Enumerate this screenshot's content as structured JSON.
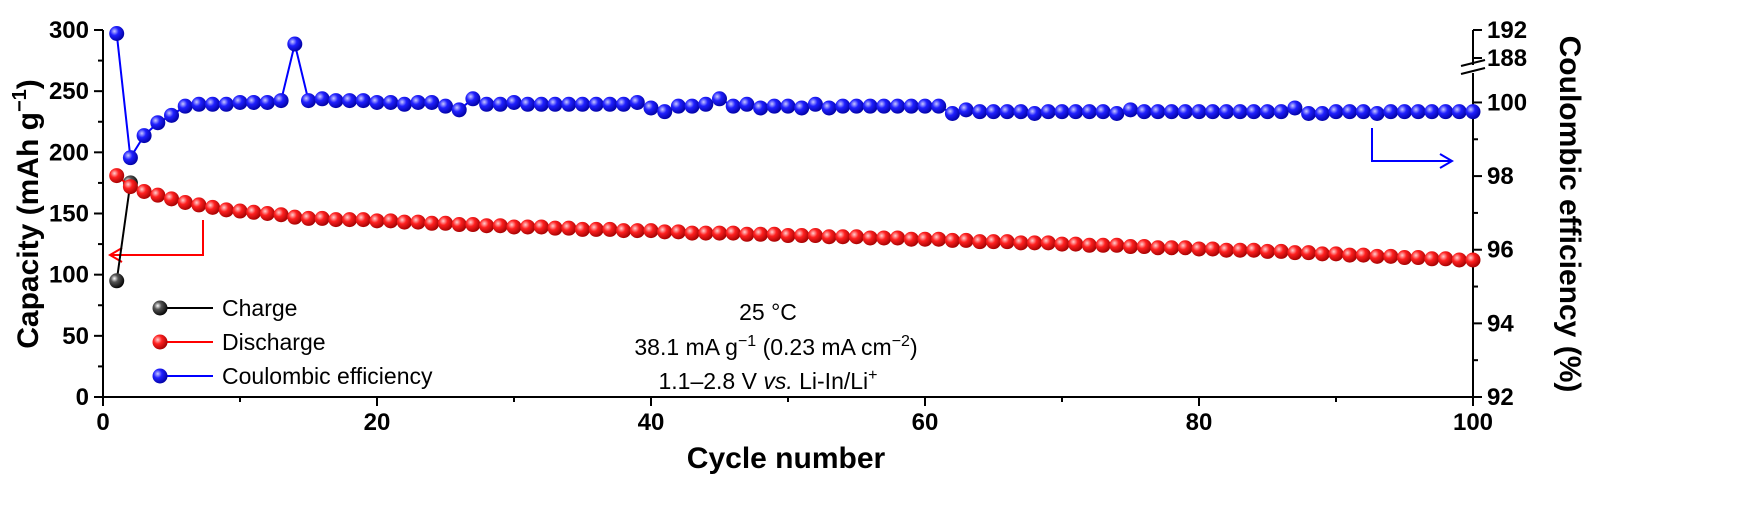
{
  "chart_data": {
    "type": "scatter",
    "xlabel": "Cycle number",
    "ylabel_left": "Capacity (mAh g",
    "ylabel_left_sup": "−1",
    "ylabel_left_close": ")",
    "ylabel_right": "Coulombic efficiency (%)",
    "x_axis": {
      "range": [
        0,
        100
      ],
      "ticks": [
        "0",
        "20",
        "40",
        "60",
        "80",
        "100"
      ]
    },
    "y_left": {
      "range": [
        0,
        300
      ],
      "ticks": [
        "0",
        "50",
        "100",
        "150",
        "200",
        "250",
        "300"
      ]
    },
    "y_right": {
      "range_lower": [
        92,
        100.8
      ],
      "ticks_lower": [
        "92",
        "94",
        "96",
        "98",
        "100"
      ],
      "range_upper": [
        187,
        192
      ],
      "ticks_upper": [
        "188",
        "192"
      ]
    },
    "grid": false,
    "legend": {
      "placement": "bottom-left",
      "entries": [
        "Charge",
        "Discharge",
        "Coulombic efficiency"
      ]
    },
    "annotations": {
      "temperature": "25 °C",
      "current_value": "38.1 mA g",
      "current_sup": "−1",
      "current_area_open": " (0.23 mA cm",
      "current_area_sup": "−2",
      "current_area_close": ")",
      "voltage_range": "1.1–2.8 V ",
      "voltage_vs": "vs.",
      "voltage_ref": " Li-In/Li",
      "voltage_ref_sup": "+"
    },
    "series": [
      {
        "name": "Charge",
        "color": "#000000",
        "axis": "left",
        "x": [
          1,
          2
        ],
        "y": [
          95,
          175
        ]
      },
      {
        "name": "Discharge",
        "color": "#ff0000",
        "axis": "left",
        "x": [
          1,
          2,
          3,
          4,
          5,
          6,
          7,
          8,
          9,
          10,
          11,
          12,
          13,
          14,
          15,
          16,
          17,
          18,
          19,
          20,
          21,
          22,
          23,
          24,
          25,
          26,
          27,
          28,
          29,
          30,
          31,
          32,
          33,
          34,
          35,
          36,
          37,
          38,
          39,
          40,
          41,
          42,
          43,
          44,
          45,
          46,
          47,
          48,
          49,
          50,
          51,
          52,
          53,
          54,
          55,
          56,
          57,
          58,
          59,
          60,
          61,
          62,
          63,
          64,
          65,
          66,
          67,
          68,
          69,
          70,
          71,
          72,
          73,
          74,
          75,
          76,
          77,
          78,
          79,
          80,
          81,
          82,
          83,
          84,
          85,
          86,
          87,
          88,
          89,
          90,
          91,
          92,
          93,
          94,
          95,
          96,
          97,
          98,
          99,
          100
        ],
        "y": [
          181,
          172,
          168,
          165,
          162,
          159,
          157,
          155,
          153,
          152,
          151,
          150,
          149,
          147,
          146,
          146,
          145,
          145,
          145,
          144,
          144,
          143,
          143,
          142,
          142,
          141,
          141,
          140,
          140,
          139,
          139,
          139,
          138,
          138,
          137,
          137,
          137,
          136,
          136,
          136,
          135,
          135,
          134,
          134,
          134,
          134,
          133,
          133,
          133,
          132,
          132,
          132,
          131,
          131,
          131,
          130,
          130,
          130,
          129,
          129,
          129,
          128,
          128,
          127,
          127,
          127,
          126,
          126,
          126,
          125,
          125,
          124,
          124,
          124,
          123,
          123,
          122,
          122,
          122,
          121,
          121,
          120,
          120,
          120,
          119,
          119,
          118,
          118,
          117,
          117,
          116,
          116,
          115,
          115,
          114,
          114,
          113,
          113,
          112,
          112
        ]
      },
      {
        "name": "Coulombic efficiency",
        "color": "#0000ff",
        "axis": "right",
        "x": [
          1,
          2,
          3,
          4,
          5,
          6,
          7,
          8,
          9,
          10,
          11,
          12,
          13,
          14,
          15,
          16,
          17,
          18,
          19,
          20,
          21,
          22,
          23,
          24,
          25,
          26,
          27,
          28,
          29,
          30,
          31,
          32,
          33,
          34,
          35,
          36,
          37,
          38,
          39,
          40,
          41,
          42,
          43,
          44,
          45,
          46,
          47,
          48,
          49,
          50,
          51,
          52,
          53,
          54,
          55,
          56,
          57,
          58,
          59,
          60,
          61,
          62,
          63,
          64,
          65,
          66,
          67,
          68,
          69,
          70,
          71,
          72,
          73,
          74,
          75,
          76,
          77,
          78,
          79,
          80,
          81,
          82,
          83,
          84,
          85,
          86,
          87,
          88,
          89,
          90,
          91,
          92,
          93,
          94,
          95,
          96,
          97,
          98,
          99,
          100
        ],
        "y": [
          191.5,
          98.5,
          99.1,
          99.45,
          99.65,
          99.9,
          99.95,
          99.95,
          99.95,
          100,
          100,
          100,
          100.05,
          190,
          100.05,
          100.1,
          100.05,
          100.05,
          100.05,
          100,
          100,
          99.95,
          100,
          100,
          99.9,
          99.8,
          100.1,
          99.95,
          99.95,
          100,
          99.95,
          99.95,
          99.95,
          99.95,
          99.95,
          99.95,
          99.95,
          99.95,
          100,
          99.85,
          99.75,
          99.9,
          99.9,
          99.95,
          100.1,
          99.9,
          99.95,
          99.85,
          99.9,
          99.9,
          99.85,
          99.95,
          99.85,
          99.9,
          99.9,
          99.9,
          99.9,
          99.9,
          99.9,
          99.9,
          99.9,
          99.7,
          99.8,
          99.75,
          99.75,
          99.75,
          99.75,
          99.7,
          99.75,
          99.75,
          99.75,
          99.75,
          99.75,
          99.7,
          99.8,
          99.75,
          99.75,
          99.75,
          99.75,
          99.75,
          99.75,
          99.75,
          99.75,
          99.75,
          99.75,
          99.75,
          99.85,
          99.7,
          99.7,
          99.75,
          99.75,
          99.75,
          99.7,
          99.75,
          99.75,
          99.75,
          99.75,
          99.75,
          99.75,
          99.75
        ]
      }
    ]
  }
}
